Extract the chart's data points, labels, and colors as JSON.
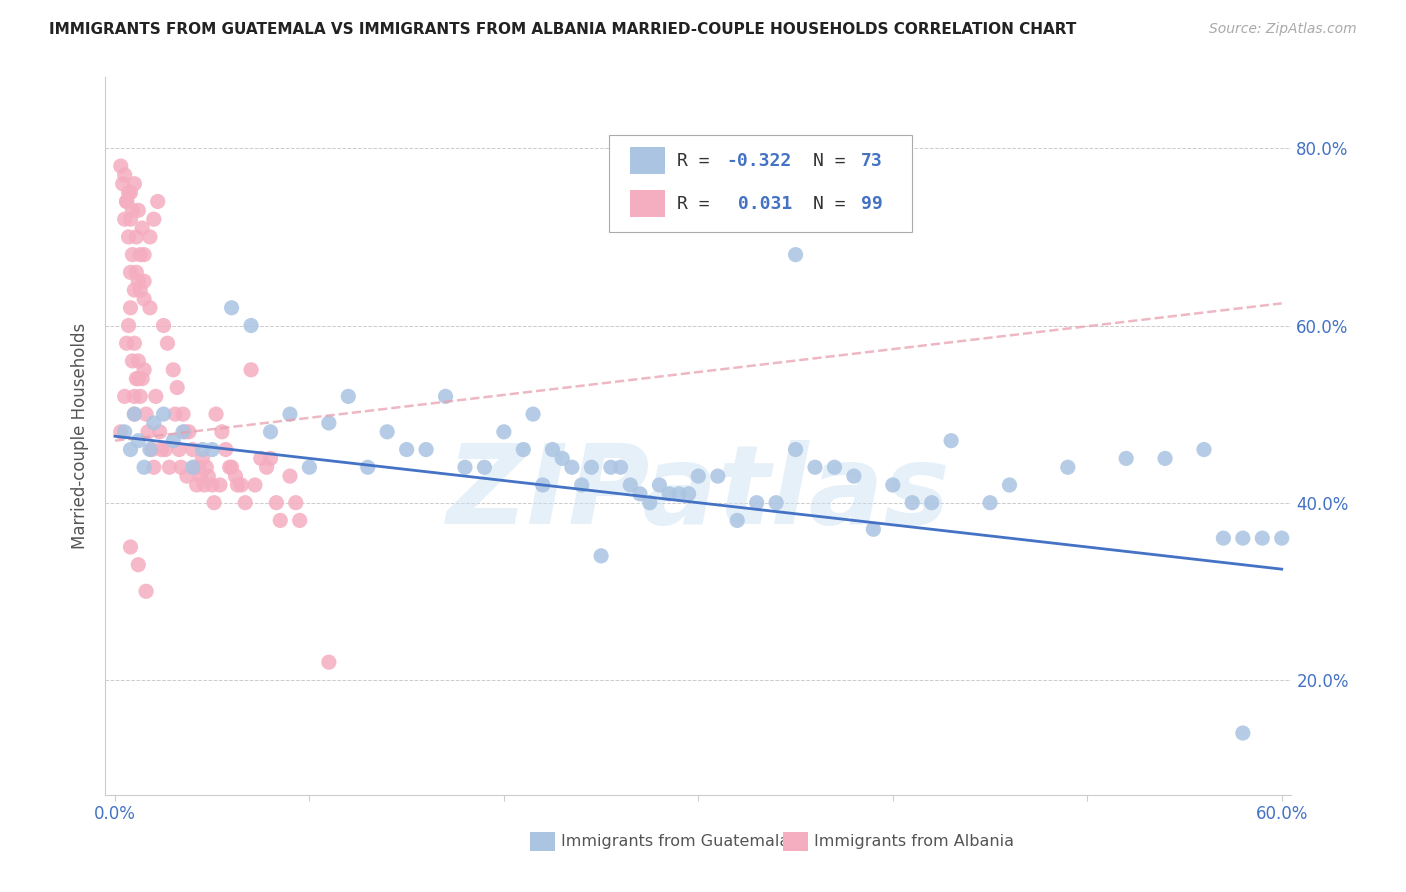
{
  "title": "IMMIGRANTS FROM GUATEMALA VS IMMIGRANTS FROM ALBANIA MARRIED-COUPLE HOUSEHOLDS CORRELATION CHART",
  "source": "Source: ZipAtlas.com",
  "ylabel": "Married-couple Households",
  "xlim": [
    -0.005,
    0.605
  ],
  "ylim": [
    0.07,
    0.88
  ],
  "xtick_pos": [
    0.0,
    0.1,
    0.2,
    0.3,
    0.4,
    0.5,
    0.6
  ],
  "xtick_labels": [
    "0.0%",
    "",
    "",
    "",
    "",
    "",
    "60.0%"
  ],
  "ytick_pos": [
    0.2,
    0.4,
    0.6,
    0.8
  ],
  "ytick_labels": [
    "20.0%",
    "40.0%",
    "60.0%",
    "80.0%"
  ],
  "watermark": "ZIPatlas",
  "color_guatemala": "#aac4e2",
  "color_albania": "#f5adc0",
  "color_line_guatemala": "#4472c4",
  "color_line_albania": "#e8a0b0",
  "color_axis_labels": "#4472c4",
  "background_color": "#ffffff",
  "grid_color": "#cccccc",
  "R_guatemala": -0.322,
  "N_guatemala": 73,
  "R_albania": 0.031,
  "N_albania": 99,
  "line_guat_x0": 0.0,
  "line_guat_y0": 0.475,
  "line_guat_x1": 0.6,
  "line_guat_y1": 0.325,
  "line_alb_x0": 0.0,
  "line_alb_y0": 0.47,
  "line_alb_x1": 0.6,
  "line_alb_y1": 0.625,
  "guat_x": [
    0.005,
    0.008,
    0.01,
    0.012,
    0.015,
    0.018,
    0.02,
    0.025,
    0.03,
    0.035,
    0.04,
    0.045,
    0.05,
    0.06,
    0.07,
    0.08,
    0.09,
    0.1,
    0.11,
    0.12,
    0.13,
    0.14,
    0.15,
    0.16,
    0.17,
    0.18,
    0.19,
    0.2,
    0.21,
    0.215,
    0.22,
    0.225,
    0.23,
    0.235,
    0.24,
    0.245,
    0.25,
    0.255,
    0.26,
    0.265,
    0.27,
    0.275,
    0.28,
    0.285,
    0.29,
    0.295,
    0.3,
    0.31,
    0.32,
    0.33,
    0.34,
    0.35,
    0.36,
    0.37,
    0.38,
    0.39,
    0.4,
    0.41,
    0.42,
    0.43,
    0.45,
    0.46,
    0.49,
    0.52,
    0.54,
    0.56,
    0.57,
    0.58,
    0.59,
    0.6,
    0.61,
    0.35,
    0.58
  ],
  "guat_y": [
    0.48,
    0.46,
    0.5,
    0.47,
    0.44,
    0.46,
    0.49,
    0.5,
    0.47,
    0.48,
    0.44,
    0.46,
    0.46,
    0.62,
    0.6,
    0.48,
    0.5,
    0.44,
    0.49,
    0.52,
    0.44,
    0.48,
    0.46,
    0.46,
    0.52,
    0.44,
    0.44,
    0.48,
    0.46,
    0.5,
    0.42,
    0.46,
    0.45,
    0.44,
    0.42,
    0.44,
    0.34,
    0.44,
    0.44,
    0.42,
    0.41,
    0.4,
    0.42,
    0.41,
    0.41,
    0.41,
    0.43,
    0.43,
    0.38,
    0.4,
    0.4,
    0.46,
    0.44,
    0.44,
    0.43,
    0.37,
    0.42,
    0.4,
    0.4,
    0.47,
    0.4,
    0.42,
    0.44,
    0.45,
    0.45,
    0.46,
    0.36,
    0.36,
    0.36,
    0.36,
    0.36,
    0.68,
    0.14
  ],
  "alb_x": [
    0.003,
    0.005,
    0.006,
    0.007,
    0.008,
    0.009,
    0.01,
    0.01,
    0.011,
    0.012,
    0.013,
    0.014,
    0.015,
    0.016,
    0.017,
    0.018,
    0.019,
    0.02,
    0.02,
    0.021,
    0.022,
    0.023,
    0.024,
    0.025,
    0.026,
    0.027,
    0.028,
    0.03,
    0.031,
    0.032,
    0.033,
    0.034,
    0.035,
    0.036,
    0.037,
    0.038,
    0.04,
    0.041,
    0.042,
    0.043,
    0.044,
    0.045,
    0.046,
    0.047,
    0.048,
    0.05,
    0.051,
    0.052,
    0.054,
    0.055,
    0.057,
    0.059,
    0.06,
    0.062,
    0.063,
    0.065,
    0.067,
    0.07,
    0.072,
    0.075,
    0.078,
    0.08,
    0.083,
    0.085,
    0.09,
    0.093,
    0.095,
    0.01,
    0.012,
    0.015,
    0.018,
    0.008,
    0.01,
    0.012,
    0.015,
    0.005,
    0.007,
    0.009,
    0.011,
    0.013,
    0.006,
    0.008,
    0.01,
    0.012,
    0.014,
    0.003,
    0.005,
    0.007,
    0.009,
    0.011,
    0.013,
    0.015,
    0.004,
    0.006,
    0.008,
    0.11,
    0.008,
    0.012,
    0.016
  ],
  "alb_y": [
    0.48,
    0.52,
    0.58,
    0.6,
    0.62,
    0.56,
    0.58,
    0.5,
    0.54,
    0.56,
    0.52,
    0.54,
    0.68,
    0.5,
    0.48,
    0.7,
    0.46,
    0.72,
    0.44,
    0.52,
    0.74,
    0.48,
    0.46,
    0.6,
    0.46,
    0.58,
    0.44,
    0.55,
    0.5,
    0.53,
    0.46,
    0.44,
    0.5,
    0.48,
    0.43,
    0.48,
    0.46,
    0.44,
    0.42,
    0.44,
    0.43,
    0.45,
    0.42,
    0.44,
    0.43,
    0.42,
    0.4,
    0.5,
    0.42,
    0.48,
    0.46,
    0.44,
    0.44,
    0.43,
    0.42,
    0.42,
    0.4,
    0.55,
    0.42,
    0.45,
    0.44,
    0.45,
    0.4,
    0.38,
    0.43,
    0.4,
    0.38,
    0.64,
    0.65,
    0.63,
    0.62,
    0.66,
    0.52,
    0.54,
    0.55,
    0.72,
    0.7,
    0.68,
    0.66,
    0.64,
    0.74,
    0.75,
    0.76,
    0.73,
    0.71,
    0.78,
    0.77,
    0.75,
    0.73,
    0.7,
    0.68,
    0.65,
    0.76,
    0.74,
    0.72,
    0.22,
    0.35,
    0.33,
    0.3
  ]
}
